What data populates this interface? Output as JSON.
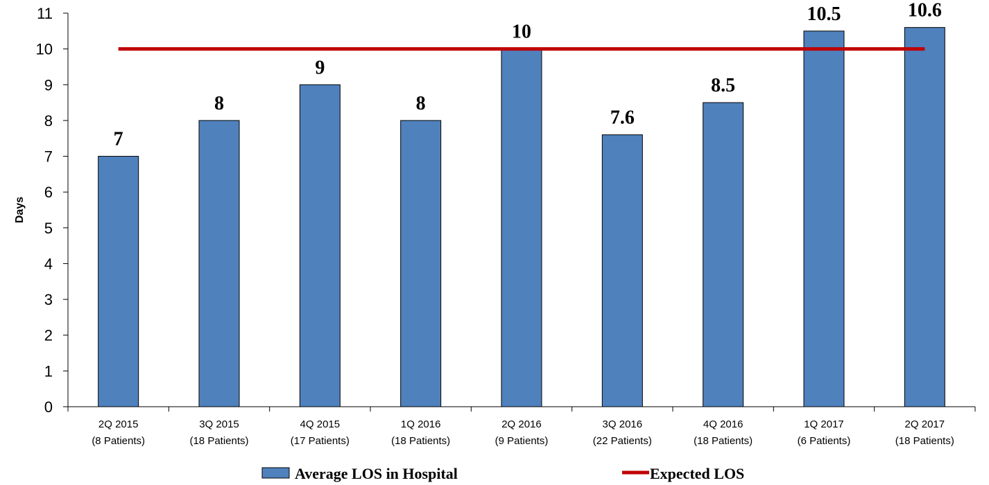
{
  "chart_data": {
    "type": "bar",
    "categories": [
      [
        "2Q 2015",
        "(8 Patients)"
      ],
      [
        "3Q 2015",
        "(18 Patients)"
      ],
      [
        "4Q 2015",
        "(17 Patients)"
      ],
      [
        "1Q 2016",
        "(18 Patients)"
      ],
      [
        "2Q 2016",
        "(9 Patients)"
      ],
      [
        "3Q 2016",
        "(22 Patients)"
      ],
      [
        "4Q 2016",
        "(18 Patients)"
      ],
      [
        "1Q 2017",
        "(6 Patients)"
      ],
      [
        "2Q 2017",
        "(18 Patients)"
      ]
    ],
    "series": [
      {
        "name": "Average LOS in Hospital",
        "kind": "bar",
        "color": "#4F81BD",
        "values": [
          7,
          8,
          9,
          8,
          10,
          7.6,
          8.5,
          10.5,
          10.6
        ],
        "data_labels": [
          "7",
          "8",
          "9",
          "8",
          "10",
          "7.6",
          "8.5",
          "10.5",
          "10.6"
        ]
      },
      {
        "name": "Expected LOS",
        "kind": "line",
        "color": "#C00000",
        "values": [
          10,
          10,
          10,
          10,
          10,
          10,
          10,
          10,
          10
        ]
      }
    ],
    "title": "",
    "xlabel": "",
    "ylabel": "Days",
    "ylim": [
      0,
      11
    ],
    "yticks": [
      "0",
      "1",
      "2",
      "3",
      "4",
      "5",
      "6",
      "7",
      "8",
      "9",
      "10",
      "11"
    ],
    "grid": false,
    "legend_position": "bottom"
  }
}
